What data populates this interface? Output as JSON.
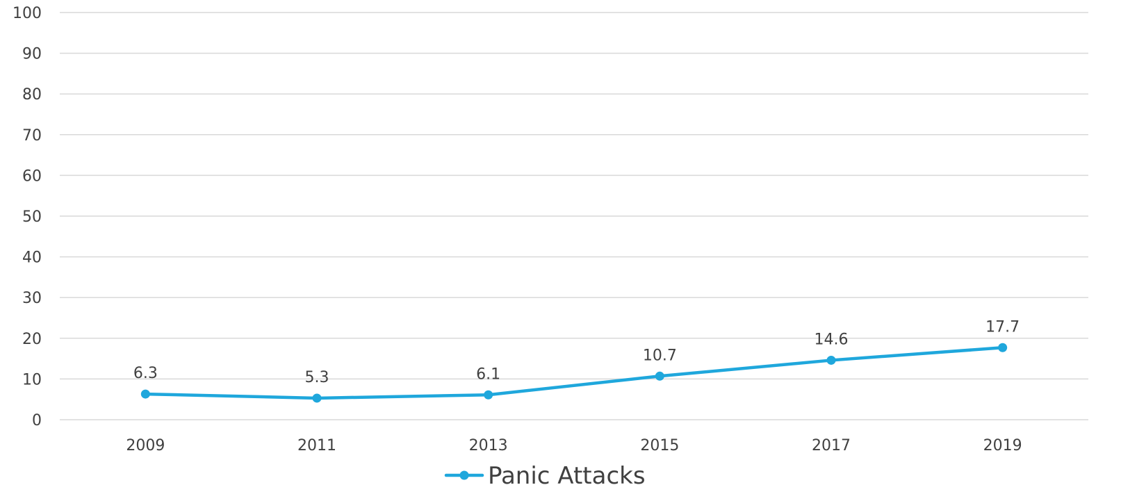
{
  "chart_data": {
    "type": "line",
    "x": [
      "2009",
      "2011",
      "2013",
      "2015",
      "2017",
      "2019"
    ],
    "series": [
      {
        "name": "Panic Attacks",
        "values": [
          6.3,
          5.3,
          6.1,
          10.7,
          14.6,
          17.7
        ],
        "color": "#1FA7DC"
      }
    ],
    "ylim": [
      0,
      100
    ],
    "yticks": [
      0,
      10,
      20,
      30,
      40,
      50,
      60,
      70,
      80,
      90,
      100
    ],
    "grid": true,
    "legend": "bottom",
    "title": "",
    "xlabel": "",
    "ylabel": "",
    "gridline_color": "#D9D9D9",
    "text_color": "#404040"
  }
}
